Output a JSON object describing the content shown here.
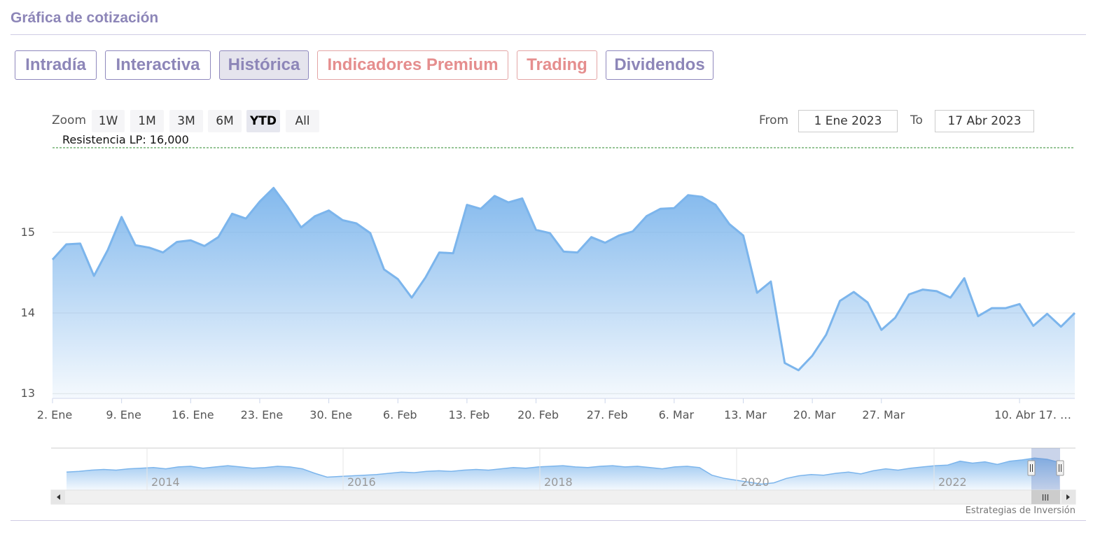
{
  "header": {
    "title": "Gráfica de cotización"
  },
  "tabs": [
    {
      "label": "Intradía",
      "style": "purple",
      "active": false
    },
    {
      "label": "Interactiva",
      "style": "purple",
      "active": false
    },
    {
      "label": "Histórica",
      "style": "purple",
      "active": true
    },
    {
      "label": "Indicadores Premium",
      "style": "pink",
      "active": false
    },
    {
      "label": "Trading",
      "style": "pink",
      "active": false
    },
    {
      "label": "Dividendos",
      "style": "purple",
      "active": false
    }
  ],
  "zoom": {
    "label": "Zoom",
    "buttons": [
      {
        "label": "1W",
        "active": false
      },
      {
        "label": "1M",
        "active": false
      },
      {
        "label": "3M",
        "active": false
      },
      {
        "label": "6M",
        "active": false
      },
      {
        "label": "YTD",
        "active": true
      },
      {
        "label": "All",
        "active": false
      }
    ]
  },
  "range": {
    "from_label": "From",
    "from_value": "1 Ene 2023",
    "to_label": "To",
    "to_value": "17 Abr 2023"
  },
  "resistance": {
    "label": "Resistencia LP: 16,000",
    "value": 16.0,
    "color": "#2e8b2e"
  },
  "chart_data": {
    "type": "area",
    "series": [
      {
        "values": [
          14.66,
          14.85,
          14.86,
          14.46,
          14.78,
          15.19,
          14.84,
          14.81,
          14.75,
          14.88,
          14.9,
          14.83,
          14.94,
          15.23,
          15.17,
          15.38,
          15.55,
          15.32,
          15.06,
          15.2,
          15.27,
          15.15,
          15.11,
          14.99,
          14.54,
          14.42,
          14.19,
          14.44,
          14.75,
          14.74,
          15.34,
          15.29,
          15.45,
          15.37,
          15.42,
          15.03,
          14.99,
          14.76,
          14.75,
          14.94,
          14.87,
          14.96,
          15.01,
          15.2,
          15.29,
          15.3,
          15.46,
          15.44,
          15.34,
          15.1,
          14.96,
          14.25,
          14.39,
          13.38,
          13.29,
          13.47,
          13.73,
          14.15,
          14.26,
          14.13,
          13.79,
          13.94,
          14.23,
          14.29,
          14.27,
          14.19,
          14.43,
          13.96,
          14.06,
          14.06,
          14.11,
          13.84,
          13.99,
          13.83,
          14.0
        ]
      }
    ],
    "yticks": [
      13,
      14,
      15
    ],
    "ylim": [
      12.95,
      16.1
    ],
    "xticks": [
      "2. Ene",
      "9. Ene",
      "16. Ene",
      "23. Ene",
      "30. Ene",
      "6. Feb",
      "13. Feb",
      "20. Feb",
      "27. Feb",
      "6. Mar",
      "13. Mar",
      "20. Mar",
      "27. Mar",
      "10. Abr 17. …"
    ],
    "line_color": "#7cb5ec",
    "grid": true,
    "navigator": {
      "years": [
        "2014",
        "2016",
        "2018",
        "2020",
        "2022"
      ],
      "values": [
        13.4,
        13.5,
        13.7,
        13.8,
        13.7,
        13.9,
        14.0,
        14.1,
        13.9,
        14.2,
        14.3,
        14.0,
        14.2,
        14.4,
        14.2,
        14.0,
        14.1,
        14.3,
        14.2,
        13.9,
        13.2,
        12.6,
        12.7,
        12.8,
        12.9,
        13.0,
        13.2,
        13.4,
        13.3,
        13.5,
        13.6,
        13.5,
        13.7,
        13.8,
        13.7,
        13.9,
        14.1,
        14.0,
        14.2,
        14.3,
        14.4,
        14.2,
        14.1,
        14.3,
        14.4,
        14.2,
        14.3,
        14.1,
        13.9,
        14.2,
        14.3,
        14.1,
        12.9,
        12.4,
        12.1,
        11.8,
        11.5,
        11.7,
        12.4,
        12.8,
        13.0,
        12.9,
        13.2,
        13.4,
        13.1,
        13.6,
        13.9,
        13.7,
        14.0,
        14.2,
        14.4,
        14.5,
        15.1,
        14.8,
        15.0,
        14.6,
        15.1,
        15.3,
        15.6,
        15.4,
        14.9
      ]
    }
  },
  "scrollbar": {
    "handle_label": "III"
  },
  "credits": "Estrategias de Inversión"
}
